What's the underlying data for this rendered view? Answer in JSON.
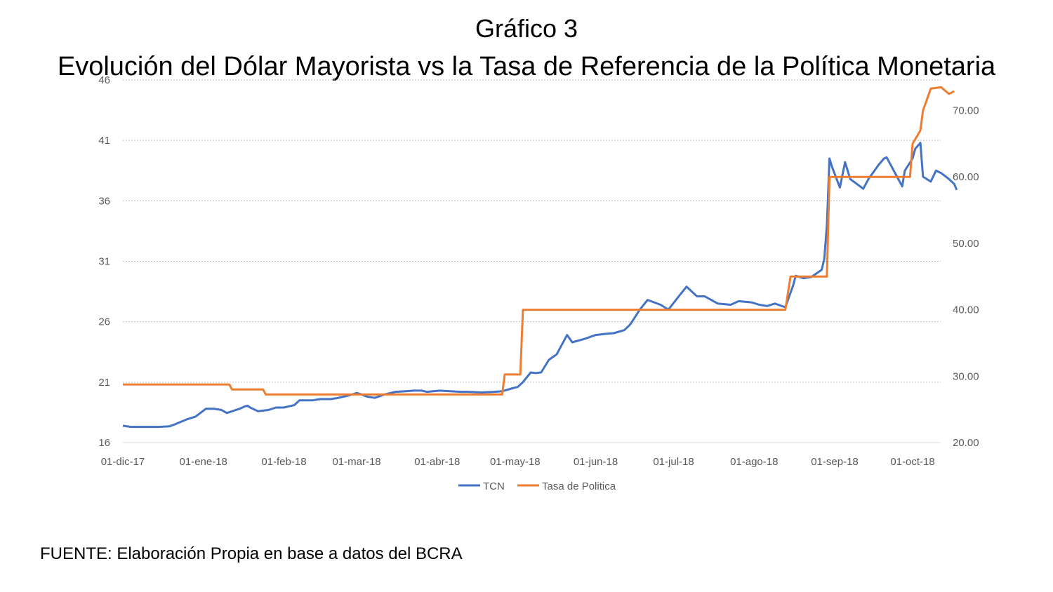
{
  "title_line1": "Gráfico 3",
  "title_line2": "Evolución del Dólar Mayorista vs la Tasa de Referencia de la Política Monetaria",
  "source": "FUENTE: Elaboración Propia en base a datos del BCRA",
  "chart_data": {
    "type": "line",
    "title": "Gráfico 3 — Evolución del Dólar Mayorista vs la Tasa de Referencia de la Política Monetaria",
    "x_ticks": [
      "01-dic-17",
      "01-ene-18",
      "01-feb-18",
      "01-mar-18",
      "01-abr-18",
      "01-may-18",
      "01-jun-18",
      "01-jul-18",
      "01-ago-18",
      "01-sep-18",
      "01-oct-18"
    ],
    "x_range": [
      "2017-12-01",
      "2018-10-08"
    ],
    "y_left": {
      "ylim": [
        16,
        46
      ],
      "ticks": [
        16,
        21,
        26,
        31,
        36,
        41,
        46
      ],
      "tick_labels": [
        "16",
        "21",
        "26",
        "31",
        "36",
        "41",
        "46"
      ]
    },
    "y_right": {
      "ylim": [
        20,
        74.6
      ],
      "ticks": [
        20,
        30,
        40,
        50,
        60,
        70
      ],
      "tick_labels": [
        "20.00",
        "30.00",
        "40.00",
        "50.00",
        "60.00",
        "70.00"
      ]
    },
    "grid": true,
    "legend_position": "bottom",
    "colors": {
      "tcn": "#4472c4",
      "tasa": "#ed7d31",
      "grid": "#bfbfbf"
    },
    "series": [
      {
        "name": "TCN",
        "axis": "left",
        "points": [
          [
            "2017-12-01",
            17.4
          ],
          [
            "2017-12-04",
            17.3
          ],
          [
            "2017-12-07",
            17.3
          ],
          [
            "2017-12-11",
            17.3
          ],
          [
            "2017-12-15",
            17.3
          ],
          [
            "2017-12-19",
            17.35
          ],
          [
            "2017-12-21",
            17.5
          ],
          [
            "2017-12-22",
            17.6
          ],
          [
            "2017-12-26",
            17.95
          ],
          [
            "2017-12-29",
            18.15
          ],
          [
            "2018-01-02",
            18.8
          ],
          [
            "2018-01-05",
            18.8
          ],
          [
            "2018-01-08",
            18.7
          ],
          [
            "2018-01-10",
            18.45
          ],
          [
            "2018-01-15",
            18.8
          ],
          [
            "2018-01-17",
            19.0
          ],
          [
            "2018-01-18",
            19.05
          ],
          [
            "2018-01-19",
            18.9
          ],
          [
            "2018-01-22",
            18.6
          ],
          [
            "2018-01-26",
            18.7
          ],
          [
            "2018-01-29",
            18.9
          ],
          [
            "2018-02-01",
            18.9
          ],
          [
            "2018-02-05",
            19.1
          ],
          [
            "2018-02-07",
            19.5
          ],
          [
            "2018-02-12",
            19.5
          ],
          [
            "2018-02-15",
            19.6
          ],
          [
            "2018-02-19",
            19.6
          ],
          [
            "2018-02-22",
            19.7
          ],
          [
            "2018-02-26",
            19.9
          ],
          [
            "2018-03-01",
            20.1
          ],
          [
            "2018-03-02",
            20.05
          ],
          [
            "2018-03-05",
            19.8
          ],
          [
            "2018-03-08",
            19.7
          ],
          [
            "2018-03-12",
            20.0
          ],
          [
            "2018-03-16",
            20.2
          ],
          [
            "2018-03-20",
            20.25
          ],
          [
            "2018-03-23",
            20.3
          ],
          [
            "2018-03-26",
            20.3
          ],
          [
            "2018-03-28",
            20.2
          ],
          [
            "2018-04-02",
            20.3
          ],
          [
            "2018-04-06",
            20.25
          ],
          [
            "2018-04-10",
            20.2
          ],
          [
            "2018-04-13",
            20.2
          ],
          [
            "2018-04-18",
            20.15
          ],
          [
            "2018-04-23",
            20.2
          ],
          [
            "2018-04-26",
            20.25
          ],
          [
            "2018-04-30",
            20.5
          ],
          [
            "2018-05-02",
            20.6
          ],
          [
            "2018-05-04",
            21.0
          ],
          [
            "2018-05-07",
            21.8
          ],
          [
            "2018-05-09",
            21.75
          ],
          [
            "2018-05-11",
            21.8
          ],
          [
            "2018-05-14",
            22.85
          ],
          [
            "2018-05-17",
            23.3
          ],
          [
            "2018-05-21",
            24.9
          ],
          [
            "2018-05-23",
            24.3
          ],
          [
            "2018-05-28",
            24.6
          ],
          [
            "2018-06-01",
            24.9
          ],
          [
            "2018-06-05",
            25.0
          ],
          [
            "2018-06-08",
            25.05
          ],
          [
            "2018-06-12",
            25.3
          ],
          [
            "2018-06-14",
            25.7
          ],
          [
            "2018-06-15",
            26.0
          ],
          [
            "2018-06-18",
            27.0
          ],
          [
            "2018-06-21",
            27.8
          ],
          [
            "2018-06-26",
            27.4
          ],
          [
            "2018-06-29",
            27.0
          ],
          [
            "2018-07-03",
            28.1
          ],
          [
            "2018-07-06",
            28.9
          ],
          [
            "2018-07-10",
            28.1
          ],
          [
            "2018-07-13",
            28.1
          ],
          [
            "2018-07-18",
            27.5
          ],
          [
            "2018-07-23",
            27.4
          ],
          [
            "2018-07-26",
            27.7
          ],
          [
            "2018-07-31",
            27.6
          ],
          [
            "2018-08-03",
            27.4
          ],
          [
            "2018-08-06",
            27.3
          ],
          [
            "2018-08-09",
            27.5
          ],
          [
            "2018-08-13",
            27.2
          ],
          [
            "2018-08-16",
            29.0
          ],
          [
            "2018-08-17",
            29.8
          ],
          [
            "2018-08-20",
            29.6
          ],
          [
            "2018-08-23",
            29.7
          ],
          [
            "2018-08-27",
            30.3
          ],
          [
            "2018-08-28",
            31.2
          ],
          [
            "2018-08-29",
            34.0
          ],
          [
            "2018-08-30",
            39.5
          ],
          [
            "2018-08-31",
            38.8
          ],
          [
            "2018-09-03",
            37.1
          ],
          [
            "2018-09-05",
            39.2
          ],
          [
            "2018-09-07",
            37.8
          ],
          [
            "2018-09-12",
            37.0
          ],
          [
            "2018-09-14",
            37.8
          ],
          [
            "2018-09-18",
            39.0
          ],
          [
            "2018-09-20",
            39.5
          ],
          [
            "2018-09-21",
            39.6
          ],
          [
            "2018-09-24",
            38.4
          ],
          [
            "2018-09-27",
            37.2
          ],
          [
            "2018-09-28",
            38.5
          ],
          [
            "2018-10-01",
            39.5
          ],
          [
            "2018-10-02",
            40.3
          ],
          [
            "2018-10-04",
            40.8
          ],
          [
            "2018-10-05",
            38.0
          ],
          [
            "2018-10-08",
            37.6
          ],
          [
            "2018-10-10",
            38.5
          ],
          [
            "2018-10-12",
            38.3
          ],
          [
            "2018-10-15",
            37.8
          ],
          [
            "2018-10-17",
            37.4
          ],
          [
            "2018-10-18",
            36.9
          ]
        ]
      },
      {
        "name": "Tasa de Politica",
        "axis": "right",
        "points": [
          [
            "2017-12-01",
            28.75
          ],
          [
            "2018-01-11",
            28.75
          ],
          [
            "2018-01-12",
            28.0
          ],
          [
            "2018-01-24",
            28.0
          ],
          [
            "2018-01-25",
            27.25
          ],
          [
            "2018-04-26",
            27.25
          ],
          [
            "2018-04-27",
            30.25
          ],
          [
            "2018-05-03",
            30.25
          ],
          [
            "2018-05-04",
            40.0
          ],
          [
            "2018-08-13",
            40.0
          ],
          [
            "2018-08-15",
            45.0
          ],
          [
            "2018-08-29",
            45.0
          ],
          [
            "2018-08-30",
            60.0
          ],
          [
            "2018-09-30",
            60.0
          ],
          [
            "2018-10-01",
            65.0
          ],
          [
            "2018-10-04",
            67.0
          ],
          [
            "2018-10-05",
            70.0
          ],
          [
            "2018-10-08",
            73.3
          ],
          [
            "2018-10-12",
            73.5
          ],
          [
            "2018-10-15",
            72.5
          ],
          [
            "2018-10-17",
            72.9
          ]
        ]
      }
    ]
  }
}
